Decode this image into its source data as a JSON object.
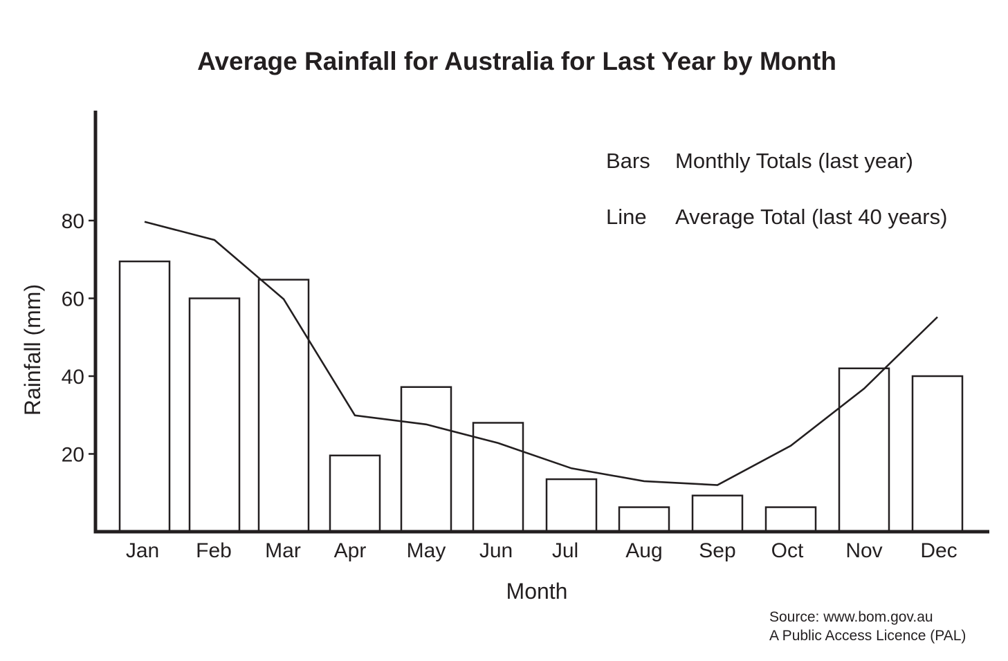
{
  "chart_data": {
    "type": "bar",
    "title": "Average Rainfall for Australia for Last Year by Month",
    "xlabel": "Month",
    "ylabel": "Rainfall (mm)",
    "ylim": [
      0,
      100
    ],
    "yticks": [
      "20",
      "40",
      "60",
      "80"
    ],
    "categories": [
      "Jan",
      "Feb",
      "Mar",
      "Apr",
      "May",
      "Jun",
      "Jul",
      "Aug",
      "Sep",
      "Oct",
      "Nov",
      "Dec"
    ],
    "series": [
      {
        "kind": "bar",
        "values": [
          69.5,
          60,
          64.8,
          19.6,
          37.2,
          28,
          13.5,
          6.3,
          9.3,
          6.3,
          42,
          40
        ]
      },
      {
        "kind": "line",
        "values": [
          79.7,
          75,
          59.8,
          29.9,
          27.6,
          22.8,
          16.3,
          13,
          12,
          22.1,
          36.8,
          55.2
        ]
      }
    ],
    "legend": {
      "position": "top-right",
      "entries": [
        {
          "marker": "Bars",
          "label": "Monthly Totals (last year)"
        },
        {
          "marker": "Line",
          "label": "Average Total (last 40 years)"
        }
      ]
    },
    "grid": false
  },
  "source": {
    "line1": "Source: www.bom.gov.au",
    "line2": "A Public Access Licence (PAL)"
  },
  "colors": {
    "ink": "#231f20",
    "bar_fill": "#ffffff",
    "background": "#ffffff"
  }
}
